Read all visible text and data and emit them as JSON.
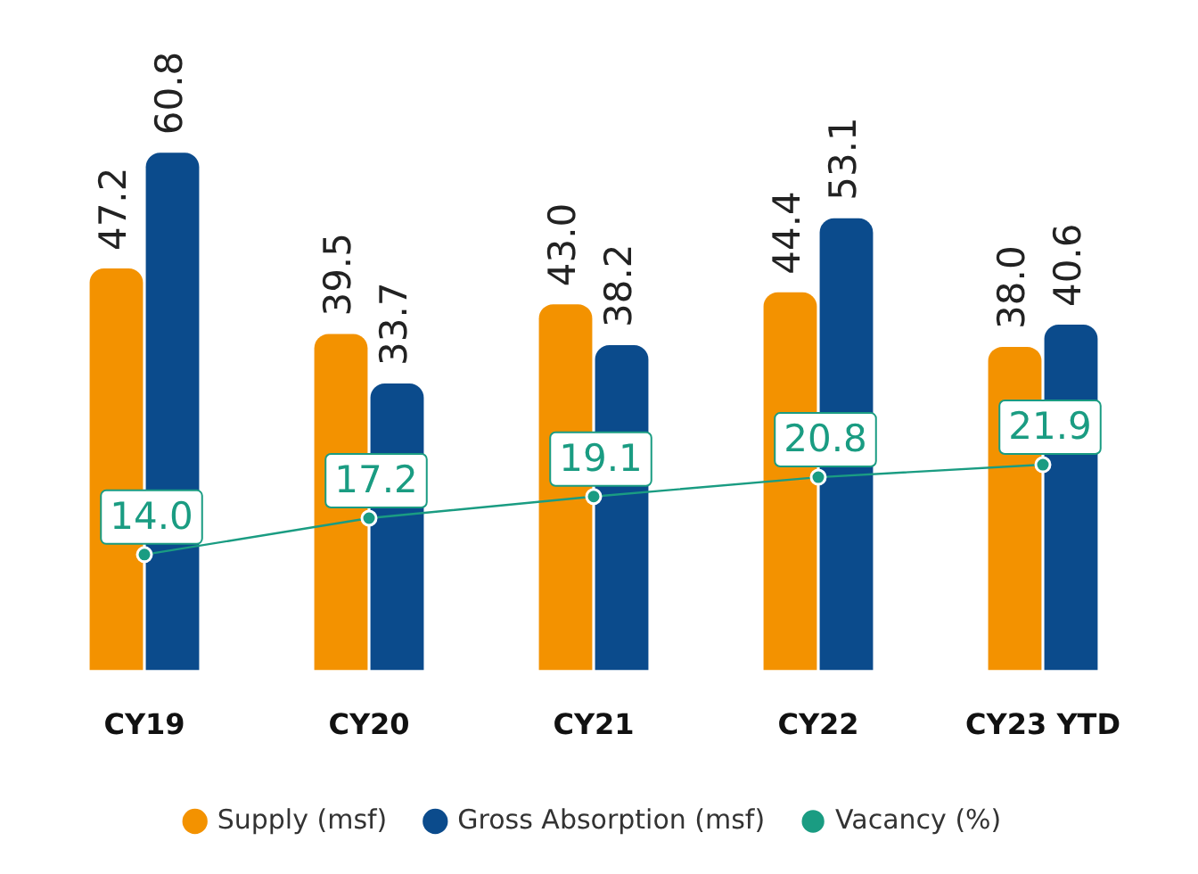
{
  "chart_data": {
    "type": "bar",
    "categories": [
      "CY19",
      "CY20",
      "CY21",
      "CY22",
      "CY23 YTD"
    ],
    "series": [
      {
        "name": "Supply (msf)",
        "color": "#f39200",
        "values": [
          47.2,
          39.5,
          43.0,
          44.4,
          38.0
        ],
        "value_labels": [
          "47.2",
          "39.5",
          "43.0",
          "44.4",
          "38.0"
        ]
      },
      {
        "name": "Gross Absorption (msf)",
        "color": "#0b4b8c",
        "values": [
          60.8,
          33.7,
          38.2,
          53.1,
          40.6
        ],
        "value_labels": [
          "60.8",
          "33.7",
          "38.2",
          "53.1",
          "40.6"
        ]
      },
      {
        "name": "Vacancy (%)",
        "type": "line",
        "axis": "y2",
        "color": "#1a9c82",
        "values": [
          14.0,
          17.2,
          19.1,
          20.8,
          21.9
        ],
        "value_labels": [
          "14.0",
          "17.2",
          "19.1",
          "20.8",
          "21.9"
        ]
      }
    ],
    "data_labels": true,
    "legend": "bottom",
    "grid": false,
    "marker": "circle",
    "line_style": "solid"
  }
}
